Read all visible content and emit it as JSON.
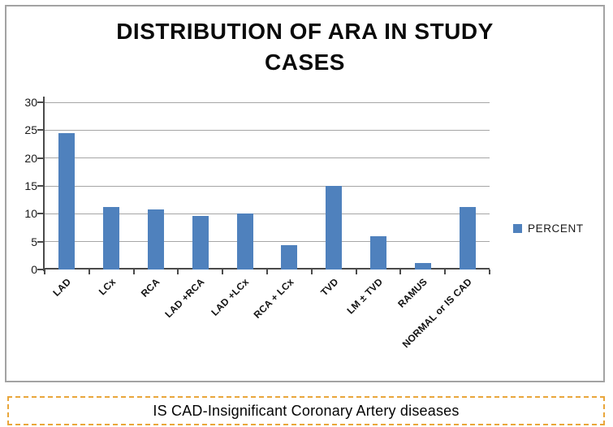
{
  "chart_data": {
    "type": "bar",
    "title": "DISTRIBUTION OF ARA IN STUDY CASES",
    "categories": [
      "LAD",
      "LCx",
      "RCA",
      "LAD +RCA",
      "LAD +LCx",
      "RCA + LCx",
      "TVD",
      "LM ± TVD",
      "RAMUS",
      "NORMAL or IS CAD"
    ],
    "series": [
      {
        "name": "PERCENT",
        "values": [
          24.5,
          11.2,
          10.8,
          9.6,
          10,
          4.4,
          15,
          6,
          1.2,
          11.2
        ]
      }
    ],
    "xlabel": "",
    "ylabel": "",
    "ylim": [
      0,
      30
    ],
    "yticks": [
      0,
      5,
      10,
      15,
      20,
      25,
      30
    ],
    "grid": true,
    "legend_position": "right",
    "bar_color": "#4f81bd"
  },
  "caption": {
    "text": "IS CAD-Insignificant Coronary Artery diseases",
    "border_color": "#e9a63b"
  },
  "colors": {
    "bar": "#4f81bd",
    "gridline": "#a6a6a6",
    "axis": "#4a4a4a",
    "frame_border": "#a3a3a3",
    "caption_border": "#e9a63b"
  }
}
